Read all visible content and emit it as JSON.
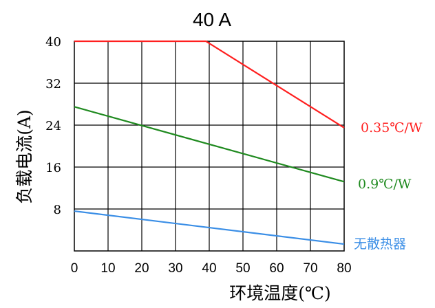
{
  "chart_data": {
    "type": "line",
    "title": "40 A",
    "xlabel": "环境温度(℃)",
    "ylabel": "负载电流(A)",
    "xlim": [
      0,
      80
    ],
    "ylim": [
      0,
      40
    ],
    "xticks": [
      0,
      10,
      20,
      30,
      40,
      50,
      60,
      70,
      80
    ],
    "yticks": [
      8,
      16,
      24,
      32,
      40
    ],
    "x_tick_labels": [
      "0",
      "10",
      "20",
      "30",
      "40",
      "50",
      "60",
      "70",
      "80"
    ],
    "y_tick_labels": [
      "8",
      "16",
      "24",
      "32",
      "40"
    ],
    "grid": true,
    "legend": "right",
    "series": [
      {
        "name": "0.35℃/W",
        "color": "#ff1f1f",
        "x": [
          0,
          39,
          80
        ],
        "y": [
          40,
          40,
          23.5
        ]
      },
      {
        "name": "0.9℃/W",
        "color": "#1f8a1f",
        "x": [
          0,
          80
        ],
        "y": [
          27.5,
          13.2
        ]
      },
      {
        "name": "无散热器",
        "color": "#3a8ee6",
        "x": [
          0,
          80
        ],
        "y": [
          7.6,
          1.3
        ]
      }
    ]
  }
}
